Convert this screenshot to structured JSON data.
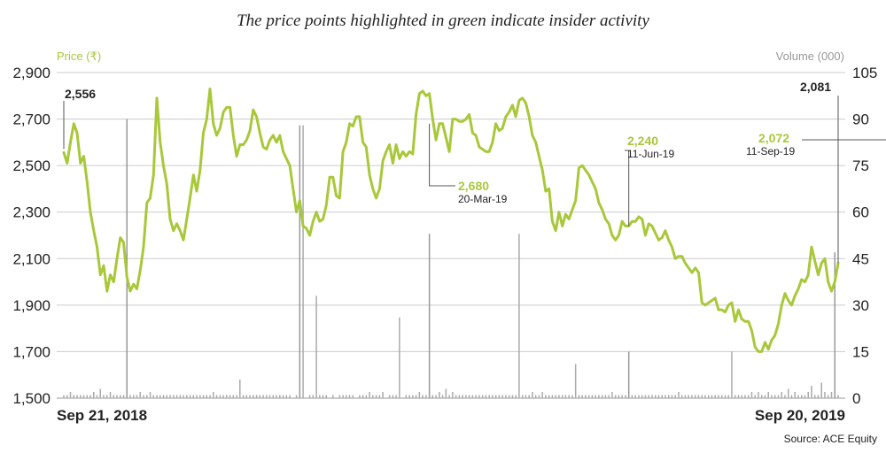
{
  "chart_data": {
    "type": "line",
    "title": "The price points highlighted in green indicate insider activity",
    "left_axis_label": "Price (₹)",
    "right_axis_label": "Volume (000)",
    "source": "Source: ACE Equity",
    "x_start_label": "Sep 21, 2018",
    "x_end_label": "Sep 20, 2019",
    "y_left": {
      "min": 1500,
      "max": 2900,
      "ticks": [
        1500,
        1700,
        1900,
        2100,
        2300,
        2500,
        2700,
        2900
      ],
      "tick_labels": [
        "1,500",
        "1,700",
        "1,900",
        "2,100",
        "2,300",
        "2,500",
        "2,700",
        "2,900"
      ]
    },
    "y_right": {
      "min": 0,
      "max": 105,
      "ticks": [
        0,
        15,
        30,
        45,
        60,
        75,
        90,
        105
      ],
      "tick_labels": [
        "0",
        "15",
        "30",
        "45",
        "60",
        "75",
        "90",
        "105"
      ]
    },
    "colors": {
      "price_line": "#a8c83a",
      "volume_bars": "#aaaaaa",
      "gridline": "#cccccc",
      "accent_text": "#a8c83a"
    },
    "series": [
      {
        "values": [
          2556,
          2510,
          2600,
          2680,
          2640,
          2510,
          2540,
          2430,
          2300,
          2220,
          2150,
          2030,
          2070,
          1960,
          2030,
          2000,
          2100,
          2190,
          2170,
          2020,
          1960,
          1990,
          1970,
          2050,
          2150,
          2340,
          2360,
          2460,
          2790,
          2600,
          2500,
          2420,
          2270,
          2220,
          2250,
          2220,
          2180,
          2270,
          2360,
          2460,
          2390,
          2480,
          2640,
          2700,
          2830,
          2680,
          2630,
          2660,
          2730,
          2750,
          2750,
          2630,
          2540,
          2590,
          2590,
          2610,
          2650,
          2740,
          2710,
          2640,
          2580,
          2570,
          2610,
          2630,
          2600,
          2630,
          2560,
          2530,
          2500,
          2400,
          2300,
          2350,
          2240,
          2230,
          2200,
          2260,
          2300,
          2260,
          2270,
          2330,
          2450,
          2450,
          2370,
          2360,
          2560,
          2600,
          2680,
          2670,
          2710,
          2710,
          2600,
          2580,
          2460,
          2400,
          2360,
          2400,
          2520,
          2560,
          2590,
          2510,
          2590,
          2530,
          2560,
          2540,
          2560,
          2550,
          2720,
          2810,
          2820,
          2800,
          2810,
          2700,
          2610,
          2680,
          2680,
          2620,
          2560,
          2700,
          2700,
          2690,
          2690,
          2700,
          2720,
          2640,
          2630,
          2580,
          2570,
          2560,
          2560,
          2600,
          2680,
          2650,
          2660,
          2710,
          2730,
          2760,
          2710,
          2780,
          2790,
          2770,
          2710,
          2630,
          2600,
          2540,
          2480,
          2390,
          2400,
          2260,
          2220,
          2300,
          2240,
          2290,
          2270,
          2310,
          2350,
          2490,
          2500,
          2480,
          2460,
          2430,
          2400,
          2340,
          2310,
          2270,
          2250,
          2200,
          2180,
          2200,
          2260,
          2240,
          2240,
          2260,
          2260,
          2280,
          2270,
          2200,
          2250,
          2240,
          2210,
          2180,
          2190,
          2220,
          2180,
          2150,
          2100,
          2110,
          2110,
          2080,
          2060,
          2040,
          2060,
          2040,
          1910,
          1900,
          1910,
          1920,
          1930,
          1880,
          1880,
          1870,
          1900,
          1910,
          1830,
          1880,
          1840,
          1830,
          1830,
          1790,
          1720,
          1700,
          1700,
          1740,
          1710,
          1750,
          1770,
          1820,
          1900,
          1950,
          1920,
          1900,
          1940,
          1970,
          2010,
          2000,
          2030,
          2150,
          2090,
          2030,
          2080,
          2100,
          2000,
          1960,
          2000,
          2081
        ]
      }
    ],
    "volume_values": [
      1,
      1,
      2,
      1,
      1,
      1,
      1,
      1,
      1,
      2,
      1,
      3,
      1,
      1,
      2,
      1,
      1,
      1,
      1,
      89,
      1,
      1,
      1,
      2,
      1,
      1,
      2,
      1,
      1,
      1,
      1,
      1,
      1,
      1,
      1,
      1,
      1,
      1,
      1,
      1,
      1,
      1,
      1,
      1,
      1,
      2,
      1,
      1,
      1,
      1,
      1,
      1,
      1,
      6,
      1,
      1,
      1,
      1,
      1,
      1,
      1,
      1,
      1,
      1,
      1,
      1,
      1,
      1,
      1,
      0,
      1,
      1,
      88,
      0,
      1,
      1,
      33,
      1,
      1,
      1,
      0,
      1,
      0,
      1,
      1,
      1,
      1,
      1,
      0,
      1,
      1,
      1,
      2,
      1,
      1,
      1,
      2,
      0,
      1,
      1,
      1,
      26,
      0,
      1,
      1,
      1,
      1,
      2,
      1,
      1,
      1,
      1,
      1,
      2,
      1,
      3,
      1,
      2,
      1,
      1,
      1,
      1,
      1,
      1,
      1,
      1,
      1,
      1,
      1,
      1,
      1,
      1,
      1,
      1,
      1,
      1,
      1,
      53,
      1,
      1,
      1,
      2,
      1,
      1,
      2,
      1,
      1,
      1,
      1,
      1,
      1,
      1,
      1,
      1,
      11,
      1,
      1,
      1,
      1,
      1,
      1,
      1,
      1,
      1,
      1,
      2,
      1,
      1,
      1,
      1,
      1,
      1,
      1,
      1,
      1,
      1,
      1,
      1,
      1,
      1,
      1,
      1,
      1,
      1,
      1,
      2,
      1,
      1,
      1,
      1,
      1,
      1,
      1,
      1,
      1,
      1,
      1,
      1,
      1,
      1,
      1,
      15,
      1,
      1,
      1,
      1,
      1,
      2,
      1,
      2,
      1,
      1,
      2,
      1,
      1,
      1,
      2,
      1,
      3,
      1,
      2,
      1,
      1,
      1,
      2,
      4,
      1,
      1,
      5,
      2,
      1,
      2,
      1,
      1,
      2,
      4,
      3,
      2,
      2,
      5,
      5,
      6,
      3,
      1,
      2,
      1,
      1,
      2,
      3,
      1,
      1,
      1,
      1,
      1,
      1,
      2,
      2,
      1
    ],
    "insider_markers": [
      {
        "index": 19,
        "volume": 90
      },
      {
        "index": 71,
        "volume": 88
      },
      {
        "index": 110,
        "value": 2680,
        "label_value": "2,680",
        "label_date": "20-Mar-19",
        "volume": 53
      },
      {
        "index": 170,
        "value": 2240,
        "label_value": "2,240",
        "label_date": "11-Jun-19",
        "volume": 15
      },
      {
        "index": 232,
        "volume": 47
      },
      {
        "index": 251,
        "value": 2072,
        "label_value": "2,072",
        "label_date": "11-Sep-19"
      }
    ],
    "endpoint_labels": {
      "start": "2,556",
      "end": "2,081"
    },
    "grid": true
  }
}
